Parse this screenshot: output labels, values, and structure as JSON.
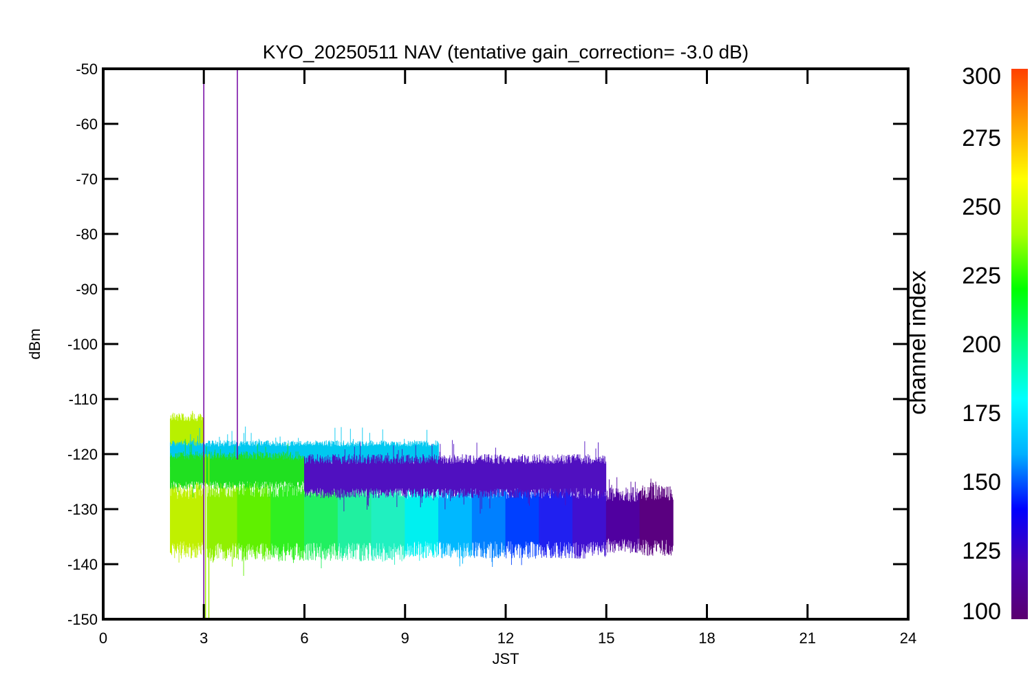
{
  "chart_data": {
    "type": "scatter",
    "title": "KYO_20250511 NAV (tentative gain_correction= -3.0 dB)",
    "xlabel": "JST",
    "ylabel": "dBm",
    "xlim": [
      0,
      24
    ],
    "ylim": [
      -150,
      -50
    ],
    "xticks": [
      0,
      3,
      6,
      9,
      12,
      15,
      18,
      21,
      24
    ],
    "yticks": [
      -50,
      -60,
      -70,
      -80,
      -90,
      -100,
      -110,
      -120,
      -130,
      -140,
      -150
    ],
    "grid": false,
    "colorbar": {
      "title": "channel index",
      "range": [
        100,
        300
      ],
      "ticks": [
        100,
        125,
        150,
        175,
        200,
        225,
        250,
        275,
        300
      ],
      "colormap": "rainbow",
      "stops": [
        "#5a0070",
        "#4b00b0",
        "#0000ff",
        "#00b0ff",
        "#00ffff",
        "#00ff88",
        "#00ff00",
        "#aaff00",
        "#ffff00",
        "#ffa000",
        "#ff4000"
      ]
    },
    "series": [
      {
        "x_start": 2.0,
        "x_end": 3.0,
        "y_low": -140,
        "y_high": -126,
        "center": -132,
        "channel": 262,
        "color": "#c0f000"
      },
      {
        "x_start": 3.1,
        "x_end": 4.0,
        "y_low": -140,
        "y_high": -125,
        "center": -132,
        "channel": 250,
        "color": "#90f000"
      },
      {
        "x_start": 4.0,
        "x_end": 5.0,
        "y_low": -140,
        "y_high": -125,
        "center": -132,
        "channel": 240,
        "color": "#60f000"
      },
      {
        "x_start": 5.0,
        "x_end": 6.0,
        "y_low": -140,
        "y_high": -125,
        "center": -132,
        "channel": 230,
        "color": "#30f020"
      },
      {
        "x_start": 6.0,
        "x_end": 7.0,
        "y_low": -140,
        "y_high": -125,
        "center": -132,
        "channel": 220,
        "color": "#20f060"
      },
      {
        "x_start": 7.0,
        "x_end": 8.0,
        "y_low": -140,
        "y_high": -125,
        "center": -132,
        "channel": 210,
        "color": "#20f0a0"
      },
      {
        "x_start": 8.0,
        "x_end": 9.0,
        "y_low": -140,
        "y_high": -125,
        "center": -132,
        "channel": 200,
        "color": "#20f0c0"
      },
      {
        "x_start": 9.0,
        "x_end": 10.0,
        "y_low": -139,
        "y_high": -125,
        "center": -132,
        "channel": 185,
        "color": "#00f0f0"
      },
      {
        "x_start": 10.0,
        "x_end": 11.0,
        "y_low": -139,
        "y_high": -125,
        "center": -132,
        "channel": 170,
        "color": "#00b8ff"
      },
      {
        "x_start": 11.0,
        "x_end": 12.0,
        "y_low": -139,
        "y_high": -125,
        "center": -132,
        "channel": 160,
        "color": "#0080ff"
      },
      {
        "x_start": 12.0,
        "x_end": 13.0,
        "y_low": -139,
        "y_high": -125,
        "center": -132,
        "channel": 145,
        "color": "#0040ff"
      },
      {
        "x_start": 13.0,
        "x_end": 14.0,
        "y_low": -139,
        "y_high": -125,
        "center": -132,
        "channel": 135,
        "color": "#2020f0"
      },
      {
        "x_start": 14.0,
        "x_end": 15.0,
        "y_low": -139,
        "y_high": -125,
        "center": -132,
        "channel": 122,
        "color": "#4010d0"
      },
      {
        "x_start": 15.0,
        "x_end": 16.0,
        "y_low": -140,
        "y_high": -128,
        "center": -132,
        "channel": 112,
        "color": "#5000a0"
      },
      {
        "x_start": 16.0,
        "x_end": 17.0,
        "y_low": -140,
        "y_high": -127,
        "center": -132,
        "channel": 105,
        "color": "#5a0080"
      },
      {
        "x_start": 2.0,
        "x_end": 3.0,
        "y_low": -119,
        "y_high": -112,
        "center": -116,
        "channel": 258,
        "color": "#b8f000"
      },
      {
        "x_start": 2.0,
        "x_end": 10.0,
        "y_low": -122,
        "y_high": -117,
        "center": -120,
        "channel": 178,
        "color": "#00c8f0"
      },
      {
        "x_start": 2.0,
        "x_end": 6.0,
        "y_low": -127,
        "y_high": -120,
        "center": -123,
        "channel": 228,
        "color": "#20e020"
      },
      {
        "x_start": 6.0,
        "x_end": 15.0,
        "y_low": -128,
        "y_high": -120,
        "center": -124,
        "channel": 120,
        "color": "#5010c0"
      }
    ],
    "spikes": [
      {
        "x": 3.0,
        "y_low": -150,
        "y_high": -52,
        "color": "#7000a0"
      },
      {
        "x": 4.0,
        "y_low": -121,
        "y_high": -50,
        "color": "#7000a0"
      },
      {
        "x": 3.05,
        "y_low": -150,
        "y_high": -120,
        "color": "#a0f000"
      },
      {
        "x": 3.15,
        "y_low": -150,
        "y_high": -120,
        "color": "#a0f000"
      }
    ]
  }
}
